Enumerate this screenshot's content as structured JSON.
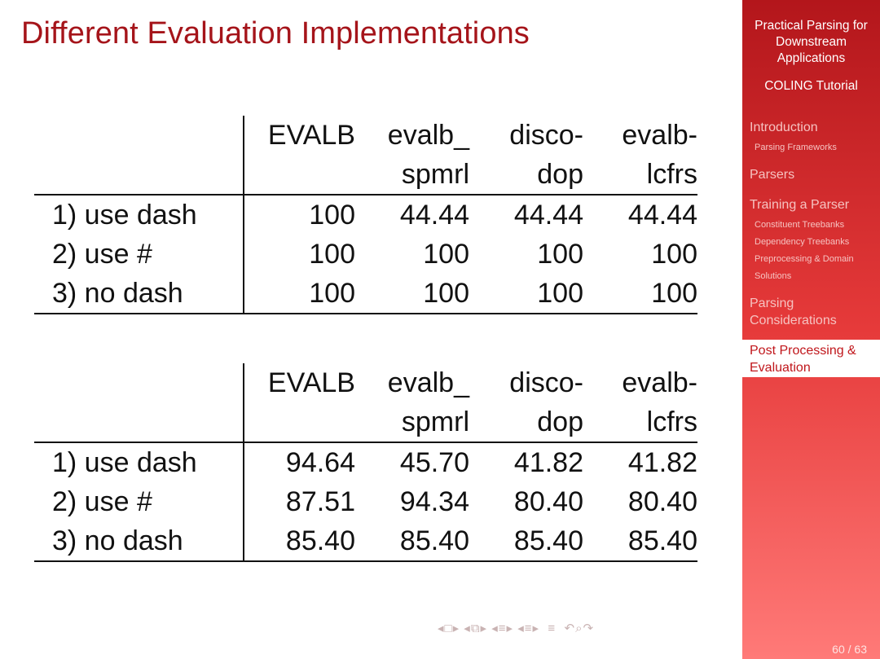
{
  "slide": {
    "title": "Different Evaluation Implementations",
    "page": "60 / 63"
  },
  "sidebar": {
    "title_lines": [
      "Practical Parsing for",
      "Downstream",
      "Applications"
    ],
    "subtitle": "COLING Tutorial",
    "sections": [
      {
        "label": "Introduction",
        "subs": [
          "Parsing Frameworks"
        ]
      },
      {
        "label": "Parsers",
        "subs": []
      },
      {
        "label": "Training a Parser",
        "subs": [
          "Constituent Treebanks",
          "Dependency Treebanks",
          "Preprocessing & Domain",
          "Solutions"
        ]
      },
      {
        "label_lines": [
          "Parsing",
          "Considerations"
        ],
        "subs": []
      },
      {
        "label_lines": [
          "Post Processing &",
          "Evaluation"
        ],
        "subs": [],
        "active": true
      }
    ]
  },
  "tables": [
    {
      "header_top": [
        "EVALB",
        "evalb_",
        "disco-",
        "evalb-"
      ],
      "header_bottom": [
        "",
        "spmrl",
        "dop",
        "lcfrs"
      ],
      "rows": [
        {
          "label": "1) use dash",
          "values": [
            "100",
            "44.44",
            "44.44",
            "44.44"
          ]
        },
        {
          "label": "2) use #",
          "values": [
            "100",
            "100",
            "100",
            "100"
          ]
        },
        {
          "label": "3) no dash",
          "values": [
            "100",
            "100",
            "100",
            "100"
          ]
        }
      ]
    },
    {
      "header_top": [
        "EVALB",
        "evalb_",
        "disco-",
        "evalb-"
      ],
      "header_bottom": [
        "",
        "spmrl",
        "dop",
        "lcfrs"
      ],
      "rows": [
        {
          "label": "1) use dash",
          "values": [
            "94.64",
            "45.70",
            "41.82",
            "41.82"
          ]
        },
        {
          "label": "2) use #",
          "values": [
            "87.51",
            "94.34",
            "80.40",
            "80.40"
          ]
        },
        {
          "label": "3) no dash",
          "values": [
            "85.40",
            "85.40",
            "85.40",
            "85.40"
          ]
        }
      ]
    }
  ],
  "nav_icons": [
    "nav-prev-frame-icon",
    "nav-frame-icon",
    "nav-next-frame-icon",
    "nav-prev-slide-icon",
    "nav-slide-icon",
    "nav-next-slide-icon",
    "nav-prev-section-icon",
    "nav-section-icon",
    "nav-next-section-icon",
    "nav-prev-subsection-icon",
    "nav-subsection-icon",
    "nav-next-subsection-icon",
    "nav-outline-icon",
    "nav-back-icon",
    "nav-search-icon",
    "nav-forward-icon"
  ]
}
